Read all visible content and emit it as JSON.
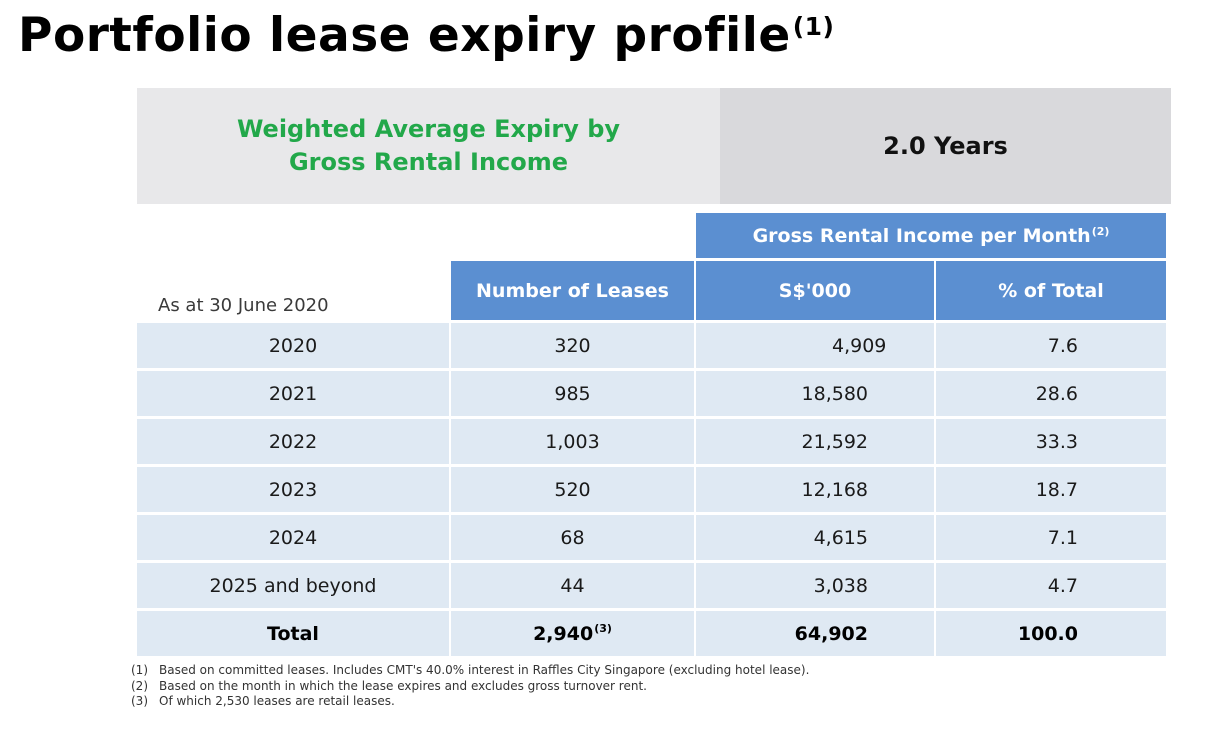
{
  "title": {
    "text": "Portfolio lease expiry profile",
    "footnote_ref": "(1)"
  },
  "wale": {
    "label": "Weighted Average Expiry by Gross Rental Income",
    "value": "2.0 Years"
  },
  "table": {
    "as_at": "As at 30 June 2020",
    "group_header": {
      "text": "Gross Rental Income per Month",
      "footnote_ref": "(2)"
    },
    "columns": {
      "leases": "Number of Leases",
      "sgd": "S$'000",
      "pct": "% of Total"
    },
    "rows": [
      {
        "year": "2020",
        "leases": "320",
        "sgd": "4,909",
        "pct": "7.6"
      },
      {
        "year": "2021",
        "leases": "985",
        "sgd": "18,580",
        "pct": "28.6"
      },
      {
        "year": "2022",
        "leases": "1,003",
        "sgd": "21,592",
        "pct": "33.3"
      },
      {
        "year": "2023",
        "leases": "520",
        "sgd": "12,168",
        "pct": "18.7"
      },
      {
        "year": "2024",
        "leases": "68",
        "sgd": "4,615",
        "pct": "7.1"
      },
      {
        "year": "2025 and beyond",
        "leases": "44",
        "sgd": "3,038",
        "pct": "4.7"
      }
    ],
    "total": {
      "label": "Total",
      "leases": "2,940",
      "leases_footnote_ref": "(3)",
      "sgd": "64,902",
      "pct": "100.0"
    }
  },
  "notes": [
    {
      "num": "(1)",
      "text": "Based on committed leases. Includes CMT's 40.0% interest in Raffles City Singapore (excluding hotel lease)."
    },
    {
      "num": "(2)",
      "text": "Based on the month in which the lease expires and excludes gross turnover rent."
    },
    {
      "num": "(3)",
      "text": "Of which 2,530 leases are retail leases."
    }
  ]
}
